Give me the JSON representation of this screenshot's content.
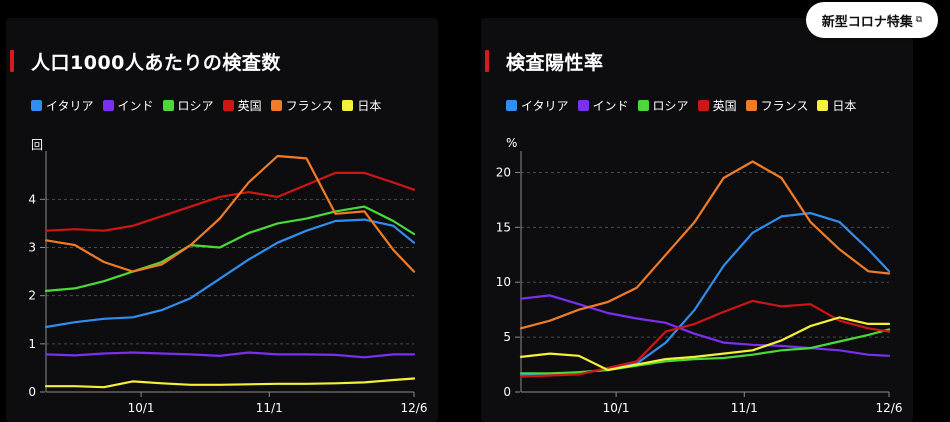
{
  "corona_button": {
    "label": "新型コロナ特集",
    "icon": "external-link-icon"
  },
  "colors": {
    "italy": "#2f8ef0",
    "india": "#7b2ff0",
    "russia": "#4bd93a",
    "uk": "#d01515",
    "france": "#f07c28",
    "japan": "#f5f03a",
    "accent": "#d41c1c"
  },
  "chart_data": [
    {
      "type": "line",
      "title": "人口1000人あたりの検査数",
      "unit": "回",
      "x_ticks": [
        "10/1",
        "11/1",
        "12/6"
      ],
      "x_dates": [
        "2020-09-08",
        "2020-09-15",
        "2020-09-22",
        "2020-09-29",
        "2020-10-06",
        "2020-10-13",
        "2020-10-20",
        "2020-10-27",
        "2020-11-03",
        "2020-11-10",
        "2020-11-17",
        "2020-11-24",
        "2020-12-01",
        "2020-12-06"
      ],
      "y_ticks": [
        0,
        1,
        2,
        3,
        4
      ],
      "ylim": [
        0,
        4.9
      ],
      "grid": true,
      "legend": "top",
      "series": [
        {
          "name": "イタリア",
          "color": "#2f8ef0",
          "values": [
            1.35,
            1.45,
            1.52,
            1.55,
            1.7,
            1.95,
            2.35,
            2.75,
            3.1,
            3.35,
            3.55,
            3.58,
            3.45,
            3.1
          ]
        },
        {
          "name": "インド",
          "color": "#7b2ff0",
          "values": [
            0.78,
            0.76,
            0.8,
            0.82,
            0.8,
            0.78,
            0.75,
            0.82,
            0.78,
            0.78,
            0.77,
            0.72,
            0.78,
            0.78
          ]
        },
        {
          "name": "ロシア",
          "color": "#4bd93a",
          "values": [
            2.1,
            2.15,
            2.3,
            2.5,
            2.7,
            3.05,
            3.0,
            3.3,
            3.5,
            3.6,
            3.75,
            3.85,
            3.55,
            3.28
          ]
        },
        {
          "name": "英国",
          "color": "#d01515",
          "values": [
            3.35,
            3.38,
            3.35,
            3.45,
            3.65,
            3.85,
            4.05,
            4.15,
            4.05,
            4.3,
            4.55,
            4.55,
            4.35,
            4.2
          ]
        },
        {
          "name": "フランス",
          "color": "#f07c28",
          "values": [
            3.15,
            3.05,
            2.7,
            2.5,
            2.65,
            3.05,
            3.6,
            4.35,
            4.9,
            4.85,
            3.7,
            3.75,
            2.95,
            2.5
          ]
        },
        {
          "name": "日本",
          "color": "#f5f03a",
          "values": [
            0.12,
            0.12,
            0.1,
            0.22,
            0.18,
            0.15,
            0.15,
            0.16,
            0.17,
            0.17,
            0.18,
            0.2,
            0.25,
            0.28
          ]
        }
      ]
    },
    {
      "type": "line",
      "title": "検査陽性率",
      "unit": "%",
      "x_ticks": [
        "10/1",
        "11/1",
        "12/6"
      ],
      "x_dates": [
        "2020-09-08",
        "2020-09-15",
        "2020-09-22",
        "2020-09-29",
        "2020-10-06",
        "2020-10-13",
        "2020-10-20",
        "2020-10-27",
        "2020-11-03",
        "2020-11-10",
        "2020-11-17",
        "2020-11-24",
        "2020-12-01",
        "2020-12-06"
      ],
      "y_ticks": [
        0,
        5,
        10,
        15,
        20
      ],
      "ylim": [
        0,
        21.5
      ],
      "grid": true,
      "legend": "top",
      "series": [
        {
          "name": "イタリア",
          "color": "#2f8ef0",
          "values": [
            1.5,
            1.6,
            1.8,
            2.0,
            2.6,
            4.5,
            7.5,
            11.5,
            14.5,
            16.0,
            16.3,
            15.5,
            13.0,
            11.0
          ]
        },
        {
          "name": "インド",
          "color": "#7b2ff0",
          "values": [
            8.5,
            8.8,
            8.0,
            7.2,
            6.7,
            6.3,
            5.3,
            4.5,
            4.3,
            4.2,
            4.0,
            3.8,
            3.4,
            3.3
          ]
        },
        {
          "name": "ロシア",
          "color": "#4bd93a",
          "values": [
            1.7,
            1.7,
            1.8,
            2.0,
            2.4,
            2.8,
            3.0,
            3.1,
            3.4,
            3.8,
            4.0,
            4.6,
            5.2,
            5.7
          ]
        },
        {
          "name": "英国",
          "color": "#d01515",
          "values": [
            1.4,
            1.5,
            1.6,
            2.2,
            2.8,
            5.5,
            6.2,
            7.3,
            8.3,
            7.8,
            8.0,
            6.5,
            5.8,
            5.5
          ]
        },
        {
          "name": "フランス",
          "color": "#f07c28",
          "values": [
            5.8,
            6.5,
            7.5,
            8.2,
            9.5,
            12.5,
            15.5,
            19.5,
            21.0,
            19.5,
            15.5,
            13.0,
            11.0,
            10.8
          ]
        },
        {
          "name": "日本",
          "color": "#f5f03a",
          "values": [
            3.2,
            3.5,
            3.3,
            2.0,
            2.5,
            3.0,
            3.2,
            3.5,
            3.8,
            4.7,
            6.0,
            6.8,
            6.2,
            6.2
          ]
        }
      ]
    }
  ]
}
